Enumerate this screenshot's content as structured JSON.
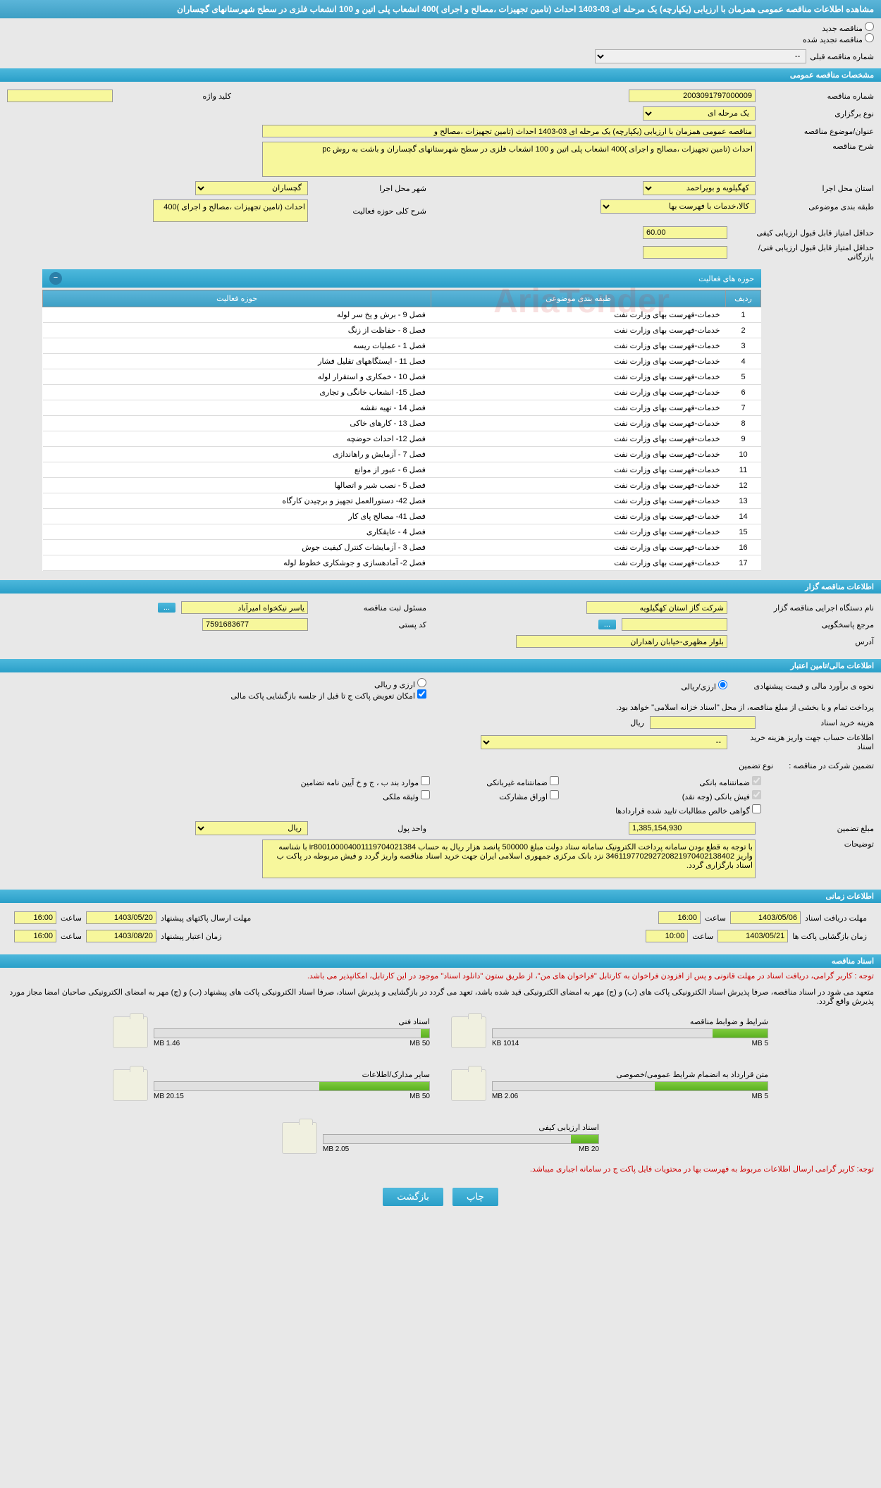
{
  "header": {
    "title": "مشاهده اطلاعات مناقصه عمومی همزمان با ارزیابی (یکپارچه) یک مرحله ای 03-1403 احداث (تامین تجهیزات ،مصالح و اجرای )400 انشعاب پلی اتین و 100 انشعاب فلزی در سطح شهرستانهای گچساران"
  },
  "radios": {
    "new_label": "مناقصه جدید",
    "renewed_label": "مناقصه تجدید شده",
    "prev_label": "شماره مناقصه قبلی",
    "prev_placeholder": "--"
  },
  "sections": {
    "general": "مشخصات مناقصه عمومی",
    "activities": "حوزه های فعالیت",
    "organizer": "اطلاعات مناقصه گزار",
    "financial": "اطلاعات مالی/تامین اعتبار",
    "timing": "اطلاعات زمانی",
    "documents": "اسناد مناقصه"
  },
  "general": {
    "tender_no_label": "شماره مناقصه",
    "tender_no": "2003091797000009",
    "type_label": "نوع برگزاری",
    "type": "یک مرحله ای",
    "keyword_label": "کلید واژه",
    "keyword": "",
    "subject_label": "عنوان/موضوع مناقصه",
    "subject": "مناقصه عمومی همزمان با ارزیابی (یکپارچه) یک مرحله ای 03-1403 احداث (تامین تجهیزات ،مصالح و",
    "desc_label": "شرح مناقصه",
    "desc": "احداث (تامین تجهیزات ،مصالح و اجرای )400 انشعاب پلی اتین و 100 انشعاب فلزی در سطح شهرستانهای گچساران و باشت به روش pc",
    "province_label": "استان محل اجرا",
    "province": "کهگیلویه و بویراحمد",
    "city_label": "شهر محل اجرا",
    "city": "گچساران",
    "category_label": "طبقه بندی موضوعی",
    "category": "کالا،خدمات با فهرست بها",
    "scope_label": "شرح کلی حوزه فعالیت",
    "scope": "احداث (تامین تجهیزات ،مصالح و اجرای )400",
    "min_quality_label": "حداقل امتیاز قابل قبول ارزیابی کیفی",
    "min_quality": "60.00",
    "min_tech_label": "حداقل امتیاز قابل قبول ارزیابی فنی/بازرگانی",
    "min_tech": ""
  },
  "table": {
    "col_row": "ردیف",
    "col_category": "طبقه بندی موضوعی",
    "col_scope": "حوزه فعالیت",
    "rows": [
      {
        "n": "1",
        "cat": "خدمات-فهرست بهای وزارت نفت",
        "scope": "فصل 9 - برش و پخ سر لوله"
      },
      {
        "n": "2",
        "cat": "خدمات-فهرست بهای وزارت نفت",
        "scope": "فصل 8 - حفاظت از زنگ"
      },
      {
        "n": "3",
        "cat": "خدمات-فهرست بهای وزارت نفت",
        "scope": "فصل 1 - عملیات ریسه"
      },
      {
        "n": "4",
        "cat": "خدمات-فهرست بهای وزارت نفت",
        "scope": "فصل 11 - ایستگاههای تقلیل فشار"
      },
      {
        "n": "5",
        "cat": "خدمات-فهرست بهای وزارت نفت",
        "scope": "فصل 10 - خمکاری و استقرار لوله"
      },
      {
        "n": "6",
        "cat": "خدمات-فهرست بهای وزارت نفت",
        "scope": "فصل 15- انشعاب خانگی و تجاری"
      },
      {
        "n": "7",
        "cat": "خدمات-فهرست بهای وزارت نفت",
        "scope": "فصل 14 - تهیه نقشه"
      },
      {
        "n": "8",
        "cat": "خدمات-فهرست بهای وزارت نفت",
        "scope": "فصل 13 - کارهای خاکی"
      },
      {
        "n": "9",
        "cat": "خدمات-فهرست بهای وزارت نفت",
        "scope": "فصل 12- احداث حوضچه"
      },
      {
        "n": "10",
        "cat": "خدمات-فهرست بهای وزارت نفت",
        "scope": "فصل 7 - آزمایش و راهاندازی"
      },
      {
        "n": "11",
        "cat": "خدمات-فهرست بهای وزارت نفت",
        "scope": "فصل 6 - عبور از موانع"
      },
      {
        "n": "12",
        "cat": "خدمات-فهرست بهای وزارت نفت",
        "scope": "فصل 5 - نصب شیر و اتصالها"
      },
      {
        "n": "13",
        "cat": "خدمات-فهرست بهای وزارت نفت",
        "scope": "فصل 42- دستورالعمل تجهیز و برچیدن کارگاه"
      },
      {
        "n": "14",
        "cat": "خدمات-فهرست بهای وزارت نفت",
        "scope": "فصل 41- مصالح پای کار"
      },
      {
        "n": "15",
        "cat": "خدمات-فهرست بهای وزارت نفت",
        "scope": "فصل 4 - عایقکاری"
      },
      {
        "n": "16",
        "cat": "خدمات-فهرست بهای وزارت نفت",
        "scope": "فصل 3 - آزمایشات کنترل کیفیت جوش"
      },
      {
        "n": "17",
        "cat": "خدمات-فهرست بهای وزارت نفت",
        "scope": "فصل 2- آمادهسازی و جوشکاری خطوط لوله"
      }
    ]
  },
  "organizer": {
    "org_label": "نام دستگاه اجرایی مناقصه گزار",
    "org": "شرکت گاز استان کهگیلویه",
    "reg_label": "مسئول ثبت مناقصه",
    "reg": "یاسر نیکخواه امیرآباد",
    "more_btn": "...",
    "contact_label": "مرجع پاسخگویی",
    "contact": "",
    "contact_btn": "...",
    "postal_label": "کد پستی",
    "postal": "7591683677",
    "address_label": "آدرس",
    "address": "بلوار مظهری-خیابان راهداران"
  },
  "financial": {
    "estimate_label": "نحوه ی برآورد مالی و قیمت پیشنهادی",
    "currency": "ارزی/ریالی",
    "rial_only": "ارزی و ریالی",
    "replace_label": "امکان تعویض پاکت ج تا قبل از جلسه بازگشایی پاکت مالی",
    "payment_note": "پرداخت تمام و یا بخشی از مبلغ مناقصه، از محل \"اسناد خزانه اسلامی\" خواهد بود.",
    "doc_cost_label": "هزینه خرید اسناد",
    "doc_cost": "",
    "rial_label": "ریال",
    "account_label": "اطلاعات حساب جهت واریز هزینه خرید اسناد",
    "account_placeholder": "--",
    "guarantee_label": "تضمین شرکت در مناقصه :",
    "guarantee_type_label": "نوع تضمین",
    "g_bank": "ضمانتنامه بانکی",
    "g_nonbank": "ضمانتنامه غیربانکی",
    "g_cases": "موارد بند ب ، ج و خ آیین نامه تضامین",
    "g_cash": "فیش بانکی (وجه نقد)",
    "g_bonds": "اوراق مشارکت",
    "g_property": "وثیقه ملکی",
    "g_receivables": "گواهی خالص مطالبات تایید شده قراردادها",
    "amount_label": "مبلغ تضمین",
    "amount": "1,385,154,930",
    "currency_label": "واحد پول",
    "currency_val": "ریال",
    "notes_label": "توضیحات",
    "notes": "با توجه به قطع بودن سامانه پرداخت الکترونیک سامانه ستاد دولت مبلغ 500000 پانصد هزار ریال به حساب ir800100004001119704021384 با شناسه واریز 346119770292720821970402138402 نزد بانک مرکزی جمهوری اسلامی ایران جهت خرید اسناد مناقصه واریز گردد و فیش مربوطه در پاکت ب اسناد بارگزاری گردد."
  },
  "timing": {
    "receive_label": "مهلت دریافت اسناد",
    "receive_date": "1403/05/06",
    "receive_time_label": "ساعت",
    "receive_time": "16:00",
    "submit_label": "مهلت ارسال پاکتهای پیشنهاد",
    "submit_date": "1403/05/20",
    "submit_time": "16:00",
    "open_label": "زمان بازگشایی پاکت ها",
    "open_date": "1403/05/21",
    "open_time": "10:00",
    "validity_label": "زمان اعتبار پیشنهاد",
    "validity_date": "1403/08/20",
    "validity_time": "16:00"
  },
  "docs": {
    "note1": "توجه : کاربر گرامی، دریافت اسناد در مهلت قانونی و پس از افزودن فراخوان به کارتابل \"فراخوان های من\"، از طریق ستون \"دانلود اسناد\" موجود در این کارتابل، امکانپذیر می باشد.",
    "note2": "متعهد می شود در اسناد مناقصه، صرفا پذیرش اسناد الکترونیکی پاکت های (ب) و (ج) مهر به امضای الکترونیکی قید شده باشد، تعهد می گردد در بازگشایی و پذیرش اسناد، صرفا اسناد الکترونیکی پاکت های پیشنهاد (ب) و (ج) مهر به امضای الکترونیکی صاحبان امضا مجاز مورد پذیرش واقع گردد.",
    "items": [
      {
        "title": "شرایط و ضوابط مناقصه",
        "used": "1014 KB",
        "total": "5 MB",
        "pct": 20
      },
      {
        "title": "اسناد فنی",
        "used": "1.46 MB",
        "total": "50 MB",
        "pct": 3
      },
      {
        "title": "متن قرارداد به انضمام شرایط عمومی/خصوصی",
        "used": "2.06 MB",
        "total": "5 MB",
        "pct": 41
      },
      {
        "title": "سایر مدارک/اطلاعات",
        "used": "20.15 MB",
        "total": "50 MB",
        "pct": 40
      },
      {
        "title": "اسناد ارزیابی کیفی",
        "used": "2.05 MB",
        "total": "20 MB",
        "pct": 10
      }
    ],
    "bottom_note": "توجه: کاربر گرامی ارسال اطلاعات مربوط به فهرست بها در محتویات فایل پاکت ج در سامانه اجباری میباشد."
  },
  "buttons": {
    "print": "چاپ",
    "back": "بازگشت"
  },
  "watermark": "AriaTender"
}
